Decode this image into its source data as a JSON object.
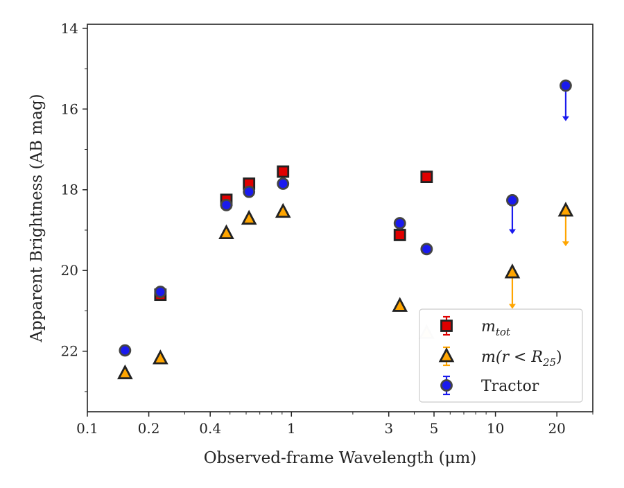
{
  "chart_data": {
    "type": "scatter",
    "xlabel": "Observed-frame Wavelength (μm)",
    "ylabel": "Apparent Brightness (AB mag)",
    "x_scale": "log",
    "y_inverted": true,
    "xlim": [
      0.1,
      30
    ],
    "ylim": [
      23.5,
      13.9
    ],
    "x_ticks": [
      {
        "value": 0.1,
        "label": "0.1"
      },
      {
        "value": 0.2,
        "label": "0.2"
      },
      {
        "value": 0.4,
        "label": "0.4"
      },
      {
        "value": 1,
        "label": "1"
      },
      {
        "value": 3,
        "label": "3"
      },
      {
        "value": 5,
        "label": "5"
      },
      {
        "value": 10,
        "label": "10"
      },
      {
        "value": 20,
        "label": "20"
      }
    ],
    "y_ticks": [
      {
        "value": 14,
        "label": "14"
      },
      {
        "value": 16,
        "label": "16"
      },
      {
        "value": 18,
        "label": "18"
      },
      {
        "value": 20,
        "label": "20"
      },
      {
        "value": 22,
        "label": "22"
      }
    ],
    "grid": false,
    "legend_position": "bottom-right",
    "series": [
      {
        "name": "m_tot",
        "legend_label": "m",
        "legend_subscript": "tot",
        "marker": "square",
        "color": "#e00000",
        "edge_color": "#222222",
        "points": [
          {
            "x": 0.228,
            "y": 20.6
          },
          {
            "x": 0.48,
            "y": 18.25
          },
          {
            "x": 0.62,
            "y": 17.85
          },
          {
            "x": 0.91,
            "y": 17.55
          },
          {
            "x": 3.4,
            "y": 19.12
          },
          {
            "x": 4.6,
            "y": 17.68
          }
        ]
      },
      {
        "name": "m(r < R_25)",
        "legend_label": "m(r < R",
        "legend_subscript": "25",
        "legend_suffix": ")",
        "marker": "triangle",
        "color": "#ffa500",
        "edge_color": "#222222",
        "points": [
          {
            "x": 0.153,
            "y": 22.55
          },
          {
            "x": 0.228,
            "y": 22.18
          },
          {
            "x": 0.48,
            "y": 19.08
          },
          {
            "x": 0.62,
            "y": 18.72
          },
          {
            "x": 0.91,
            "y": 18.55
          },
          {
            "x": 3.4,
            "y": 20.88
          },
          {
            "x": 4.6,
            "y": 21.55,
            "faint": true
          },
          {
            "x": 12.1,
            "y": 20.05,
            "upper_limit_to": 20.95
          },
          {
            "x": 22.1,
            "y": 18.52,
            "upper_limit_to": 19.4
          }
        ]
      },
      {
        "name": "Tractor",
        "legend_label": "Tractor",
        "marker": "circle",
        "color": "#1a1aee",
        "edge_color": "#444444",
        "points": [
          {
            "x": 0.153,
            "y": 21.98
          },
          {
            "x": 0.228,
            "y": 20.53
          },
          {
            "x": 0.48,
            "y": 18.38
          },
          {
            "x": 0.62,
            "y": 18.05
          },
          {
            "x": 0.91,
            "y": 17.85
          },
          {
            "x": 3.4,
            "y": 18.83
          },
          {
            "x": 4.6,
            "y": 19.47
          },
          {
            "x": 12.1,
            "y": 18.26,
            "upper_limit_to": 19.1
          },
          {
            "x": 22.1,
            "y": 15.42,
            "upper_limit_to": 16.3
          }
        ]
      }
    ]
  }
}
